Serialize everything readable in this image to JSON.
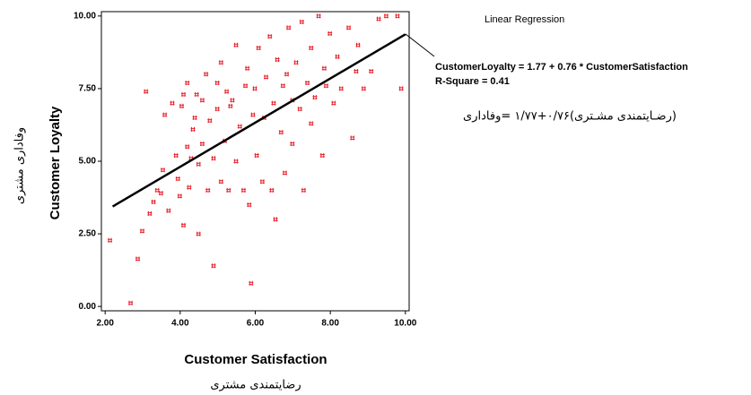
{
  "chart_data": {
    "type": "scatter",
    "title": "Linear Regression",
    "annotations": [
      "CustomerLoyalty = 1.77 + 0.76 * CustomerSatisfaction",
      "R-Square = 0.41",
      "(رضـایتمندی مشـتری)۰/۷۶+۱/۷۷ =وفاداری"
    ],
    "x_label": "Customer Satisfaction",
    "x_label_fa": "رضایتمندی مشتری",
    "y_label": "Customer Loyalty",
    "y_label_fa": "وفاداری مشتری",
    "xlim": [
      1.9,
      10.1
    ],
    "ylim": [
      -0.15,
      10.15
    ],
    "xticks": [
      {
        "value": 2,
        "label": "2.00"
      },
      {
        "value": 4,
        "label": "4.00"
      },
      {
        "value": 6,
        "label": "6.00"
      },
      {
        "value": 8,
        "label": "8.00"
      },
      {
        "value": 10,
        "label": "10.00"
      }
    ],
    "yticks": [
      {
        "value": 0,
        "label": "0.00"
      },
      {
        "value": 2.5,
        "label": "2.50"
      },
      {
        "value": 5,
        "label": "5.00"
      },
      {
        "value": 7.5,
        "label": "7.50"
      },
      {
        "value": 10,
        "label": "10.00"
      }
    ],
    "series": [
      {
        "type": "scatter",
        "color": "#e8202a",
        "x": [
          2.14,
          2.69,
          2.88,
          3.0,
          3.2,
          3.3,
          3.1,
          3.4,
          3.5,
          3.55,
          3.6,
          3.7,
          3.8,
          3.9,
          3.95,
          4.0,
          4.05,
          4.1,
          4.1,
          4.2,
          4.2,
          4.25,
          4.3,
          4.35,
          4.4,
          4.45,
          4.5,
          4.5,
          4.6,
          4.6,
          4.7,
          4.75,
          4.8,
          4.9,
          4.9,
          5.0,
          5.0,
          5.1,
          5.1,
          5.2,
          5.25,
          5.3,
          5.35,
          5.4,
          5.5,
          5.5,
          5.6,
          5.7,
          5.75,
          5.8,
          5.85,
          5.9,
          5.95,
          6.0,
          6.05,
          6.1,
          6.2,
          6.25,
          6.3,
          6.4,
          6.45,
          6.5,
          6.55,
          6.6,
          6.7,
          6.75,
          6.8,
          6.85,
          6.9,
          7.0,
          7.0,
          7.1,
          7.2,
          7.25,
          7.3,
          7.4,
          7.5,
          7.5,
          7.6,
          7.7,
          7.8,
          7.85,
          7.9,
          8.0,
          8.1,
          8.2,
          8.3,
          8.5,
          8.6,
          8.7,
          8.75,
          8.9,
          9.1,
          9.3,
          9.5,
          9.8,
          9.9
        ],
        "values": [
          2.28,
          0.12,
          1.64,
          2.6,
          3.2,
          3.6,
          7.4,
          4.0,
          3.9,
          4.7,
          6.6,
          3.3,
          7.0,
          5.2,
          4.4,
          3.8,
          6.9,
          2.8,
          7.3,
          7.7,
          5.5,
          4.1,
          5.1,
          6.1,
          6.5,
          7.3,
          4.9,
          2.5,
          5.6,
          7.1,
          8.0,
          4.0,
          6.4,
          1.4,
          5.1,
          7.7,
          6.8,
          4.3,
          8.4,
          5.7,
          7.4,
          4.0,
          6.9,
          7.1,
          9.0,
          5.0,
          6.2,
          4.0,
          7.6,
          8.2,
          3.5,
          0.8,
          6.6,
          7.5,
          5.2,
          8.9,
          4.3,
          6.5,
          7.9,
          9.3,
          4.0,
          7.0,
          3.0,
          8.5,
          6.0,
          7.6,
          4.6,
          8.0,
          9.6,
          7.1,
          5.6,
          8.4,
          6.8,
          9.8,
          4.0,
          7.7,
          8.9,
          6.3,
          7.2,
          10.0,
          5.2,
          8.2,
          7.6,
          9.4,
          7.0,
          8.6,
          7.5,
          9.6,
          5.8,
          8.1,
          9.0,
          7.5,
          8.1,
          9.9,
          10.0,
          10.0,
          7.5
        ]
      },
      {
        "type": "line",
        "color": "#000000",
        "x": [
          2.2,
          10.0
        ],
        "values": [
          3.44,
          9.37
        ]
      }
    ]
  }
}
